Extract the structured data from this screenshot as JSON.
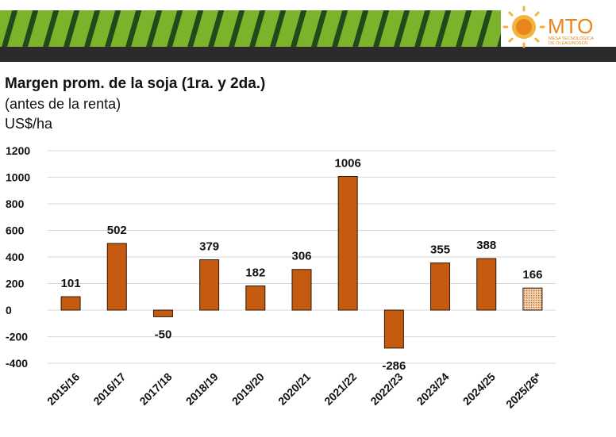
{
  "brand": {
    "name": "MTO",
    "tagline_line1": "MESA TECNOLÓGICA",
    "tagline_line2": "DE OLEAGINOSOS",
    "colors": {
      "stripe_green": "#7cb32a",
      "stripe_dark": "#1f4a1c",
      "band": "#2b2b2b",
      "accent": "#e8851b"
    }
  },
  "chart_data": {
    "type": "bar",
    "title": "Margen prom. de la soja (1ra. y 2da.)",
    "subtitle": "(antes de la renta)",
    "ylabel": "US$/ha",
    "categories": [
      "2015/16",
      "2016/17",
      "2017/18",
      "2018/19",
      "2019/20",
      "2020/21",
      "2021/22",
      "2022/23",
      "2023/24",
      "2024/25",
      "2025/26*"
    ],
    "values": [
      101,
      502,
      -50,
      379,
      182,
      306,
      1006,
      -286,
      355,
      388,
      166
    ],
    "data_labels": [
      "101",
      "502",
      "-50",
      "379",
      "182",
      "306",
      "1006",
      "-286",
      "355",
      "388",
      "166"
    ],
    "ylim": [
      -400,
      1200
    ],
    "yticks": [
      1200,
      1000,
      800,
      600,
      400,
      200,
      0,
      -200,
      -400
    ],
    "ytick_labels": [
      "1200",
      "1000",
      "800",
      "600",
      "400",
      "200",
      "0",
      "-200",
      "-400"
    ],
    "projected_index": 10,
    "grid": true,
    "colors": {
      "bar": "#c55a11",
      "projected_bar": "#f0d2b4",
      "projected_dots": "#c55a11",
      "grid": "#d9d9d9"
    }
  }
}
